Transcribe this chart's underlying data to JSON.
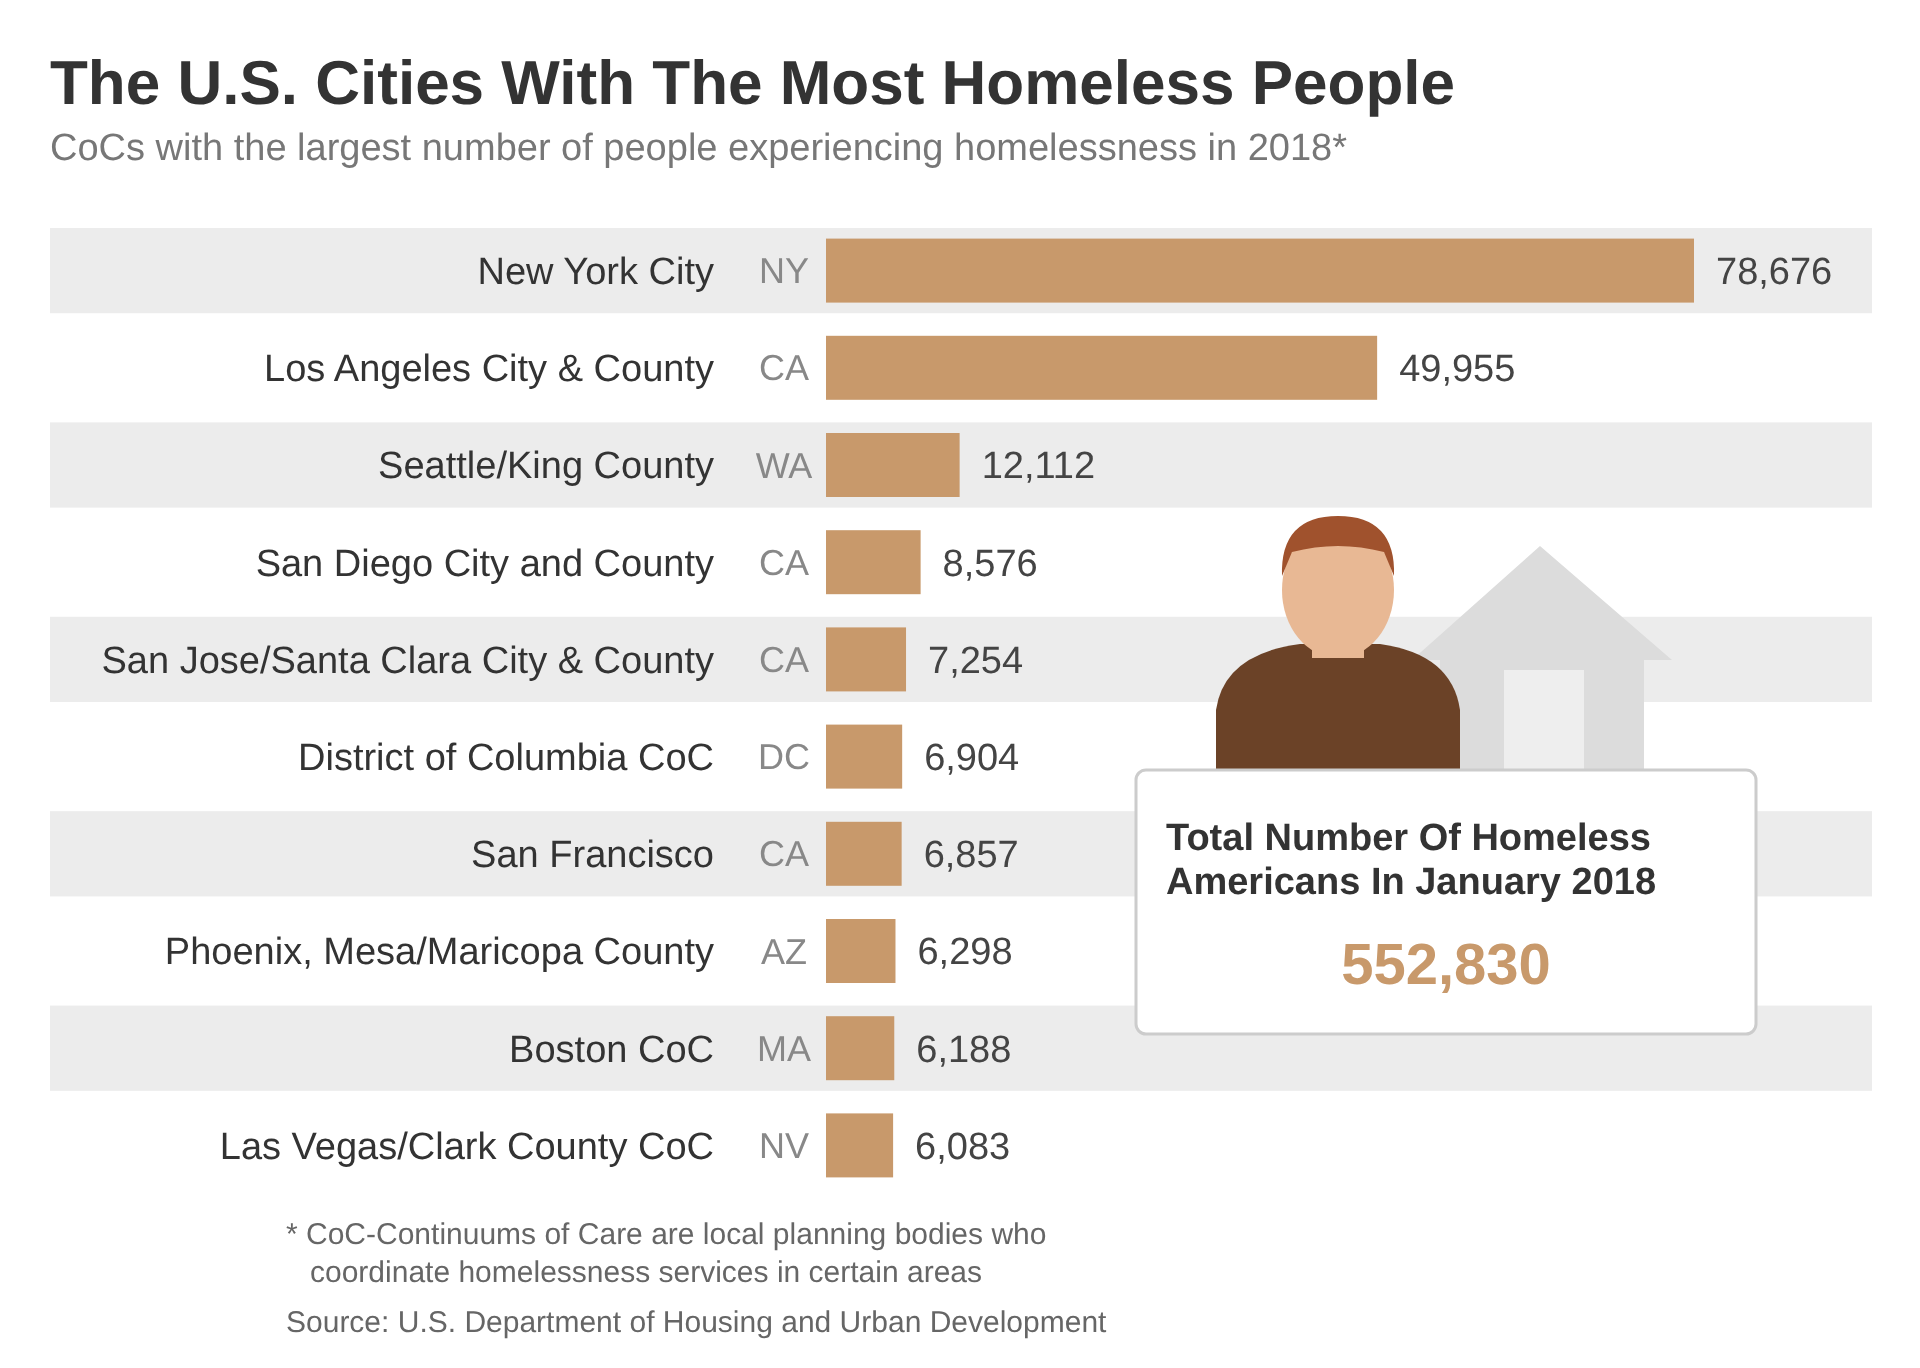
{
  "chart_data": {
    "type": "bar",
    "orientation": "horizontal",
    "title": "The U.S. Cities With The Most Homeless People",
    "subtitle": "CoCs with the largest number of people experiencing homelessness in 2018*",
    "categories": [
      "New York City",
      "Los Angeles City & County",
      "Seattle/King County",
      "San Diego City and County",
      "San Jose/Santa Clara City & County",
      "District of Columbia CoC",
      "San Francisco",
      "Phoenix, Mesa/Maricopa County",
      "Boston CoC",
      "Las Vegas/Clark County CoC"
    ],
    "values": [
      78676,
      49955,
      12112,
      8576,
      7254,
      6904,
      6857,
      6298,
      6188,
      6083
    ],
    "color": "#c8996b",
    "value_labels": [
      "78,676",
      "49,955",
      "12,112",
      "8,576",
      "7,254",
      "6,904",
      "6,857",
      "6,298",
      "6,188",
      "6,083"
    ],
    "bands": [
      {
        "axis": "y",
        "from": "New York City",
        "to": "New York City",
        "color": "#ececec"
      },
      {
        "axis": "y",
        "from": "Seattle/King County",
        "to": "Seattle/King County",
        "color": "#ececec"
      },
      {
        "axis": "y",
        "from": "San Jose/Santa Clara City & County",
        "to": "San Jose/Santa Clara City & County",
        "color": "#ececec"
      },
      {
        "axis": "y",
        "from": "San Francisco",
        "to": "San Francisco",
        "color": "#ececec"
      },
      {
        "axis": "y",
        "from": "Boston CoC",
        "to": "Boston CoC",
        "color": "#ececec"
      }
    ],
    "annotations": [
      "NY",
      "CA",
      "WA",
      "CA",
      "CA",
      "DC",
      "CA",
      "AZ",
      "MA",
      "NV",
      "Total Number Of Homeless Americans In January 2018",
      "552,830",
      "* CoC-Continuums of Care are local planning bodies who coordinate homelessness services in certain areas",
      "Source: U.S. Department of Housing and Urban Development"
    ]
  }
}
